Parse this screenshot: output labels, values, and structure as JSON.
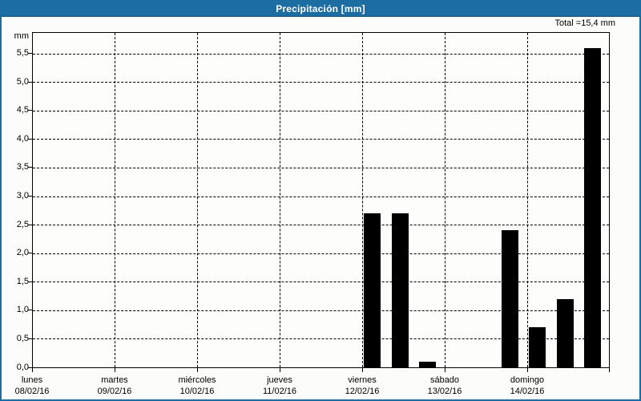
{
  "header": {
    "title": "Precipitación [mm]"
  },
  "summary": {
    "total_label": "Total =15,4 mm"
  },
  "chart_data": {
    "type": "bar",
    "title": "Precipitación [mm]",
    "ylabel": "mm",
    "ylim": [
      0,
      5.86
    ],
    "y_tick_step": 0.5,
    "y_tick_labels": [
      "0,0",
      "0,5",
      "1,0",
      "1,5",
      "2,0",
      "2,5",
      "3,0",
      "3,5",
      "4,0",
      "4,5",
      "5,0",
      "5,5"
    ],
    "grid": "dashed",
    "legend": "none",
    "total_mm": 15.4,
    "days": [
      {
        "name": "lunes",
        "date": "08/02/16"
      },
      {
        "name": "martes",
        "date": "09/02/16"
      },
      {
        "name": "miércoles",
        "date": "10/02/16"
      },
      {
        "name": "jueves",
        "date": "11/02/16"
      },
      {
        "name": "viernes",
        "date": "12/02/16"
      },
      {
        "name": "sábado",
        "date": "13/02/16"
      },
      {
        "name": "domingo",
        "date": "14/02/16"
      }
    ],
    "bars": [
      {
        "date": "12/02/16",
        "hour": 3,
        "value_mm": 2.7
      },
      {
        "date": "12/02/16",
        "hour": 11,
        "value_mm": 2.7
      },
      {
        "date": "12/02/16",
        "hour": 19,
        "value_mm": 0.1
      },
      {
        "date": "13/02/16",
        "hour": 19,
        "value_mm": 2.4
      },
      {
        "date": "14/02/16",
        "hour": 3,
        "value_mm": 0.7
      },
      {
        "date": "14/02/16",
        "hour": 11,
        "value_mm": 1.2
      },
      {
        "date": "14/02/16",
        "hour": 19,
        "value_mm": 5.6
      }
    ]
  },
  "colors": {
    "frame": "#1C6DA2",
    "header_bg": "#1C6DA2",
    "header_text": "#FFFFFF",
    "bar": "#000000",
    "plot_bg": "#FDFEFB",
    "text": "#000000"
  }
}
